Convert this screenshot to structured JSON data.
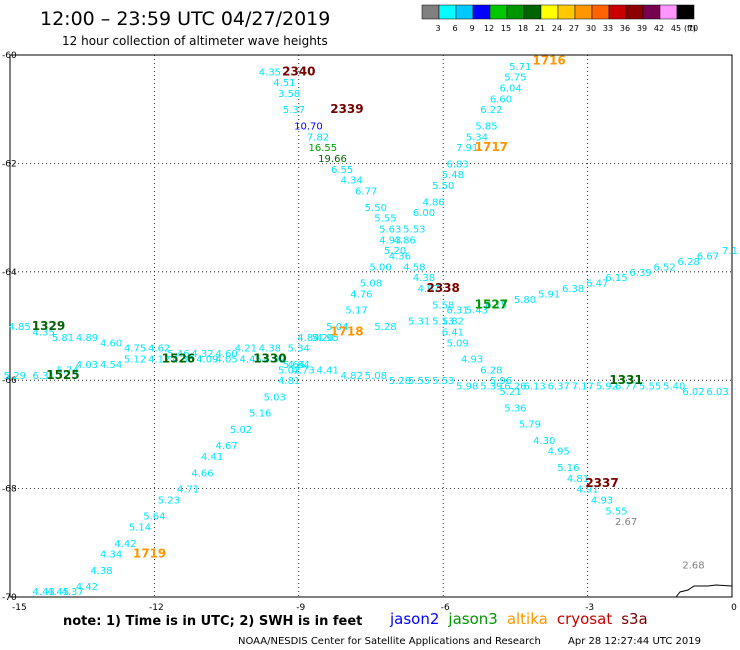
{
  "header": {
    "title": "12:00 – 23:59 UTC 04/27/2019",
    "subtitle": "12 hour collection of altimeter wave heights"
  },
  "legend_scale": {
    "labels": [
      "3",
      "6",
      "9",
      "12",
      "15",
      "18",
      "21",
      "24",
      "27",
      "30",
      "33",
      "36",
      "39",
      "42",
      "45",
      "70"
    ],
    "unit": "(ft)",
    "colors": [
      "#808080",
      "#00ffff",
      "#00c8ff",
      "#0000ff",
      "#00c800",
      "#009600",
      "#006400",
      "#ffff00",
      "#ffc800",
      "#ff9600",
      "#ff6400",
      "#c80000",
      "#8c0000",
      "#780050",
      "#ff96ff",
      "#000000"
    ]
  },
  "note": "note: 1) Time is in UTC; 2) SWH is in feet",
  "satellites": [
    {
      "name": "jason2",
      "color": "#0000ff"
    },
    {
      "name": "jason3",
      "color": "#009600"
    },
    {
      "name": "altika",
      "color": "#ff9600"
    },
    {
      "name": "cryosat",
      "color": "#c80000"
    },
    {
      "name": "s3a",
      "color": "#780000"
    }
  ],
  "credit": {
    "agency": "NOAA/NESDIS Center for Satellite Applications and Research",
    "stamp": "Apr 28 12:27:44 UTC 2019"
  },
  "chart_data": {
    "type": "scatter",
    "title": "12:00 – 23:59 UTC 04/27/2019",
    "subtitle": "12 hour collection of altimeter wave heights",
    "xlabel": "",
    "ylabel": "",
    "xlim": [
      -15,
      0
    ],
    "ylim": [
      -70,
      -60
    ],
    "xticks": [
      -15,
      -12,
      -9,
      -6,
      -3,
      0
    ],
    "yticks": [
      -60,
      -62,
      -64,
      -66,
      -68,
      -70
    ],
    "xtick_labels": [
      "-15",
      "-12",
      "-9",
      "-6",
      "-3",
      "0"
    ],
    "ytick_labels": [
      "-60",
      "-62",
      "-64",
      "-66",
      "-68",
      "-70"
    ],
    "grid": true,
    "units": "ft",
    "swh_labels": [
      {
        "x": -9.6,
        "y": -60.3,
        "text": "4.35",
        "color": "#00e6ff"
      },
      {
        "x": -9.3,
        "y": -60.5,
        "text": "4.51",
        "color": "#00e6ff"
      },
      {
        "x": -9.2,
        "y": -60.7,
        "text": "3.58",
        "color": "#00e6ff"
      },
      {
        "x": -9.1,
        "y": -61.0,
        "text": "5.37",
        "color": "#00e6ff"
      },
      {
        "x": -8.8,
        "y": -61.3,
        "text": "10.70",
        "color": "#0000ff"
      },
      {
        "x": -8.6,
        "y": -61.5,
        "text": "7.82",
        "color": "#00e6ff"
      },
      {
        "x": -8.5,
        "y": -61.7,
        "text": "16.55",
        "color": "#00a000"
      },
      {
        "x": -8.3,
        "y": -61.9,
        "text": "19.66",
        "color": "#006400"
      },
      {
        "x": -8.1,
        "y": -62.1,
        "text": "6.55",
        "color": "#00e6ff"
      },
      {
        "x": -7.9,
        "y": -62.3,
        "text": "4.34",
        "color": "#00e6ff"
      },
      {
        "x": -7.6,
        "y": -62.5,
        "text": "6.77",
        "color": "#00e6ff"
      },
      {
        "x": -7.4,
        "y": -62.8,
        "text": "5.50",
        "color": "#00e6ff"
      },
      {
        "x": -7.2,
        "y": -63.0,
        "text": "5.55",
        "color": "#00e6ff"
      },
      {
        "x": -7.1,
        "y": -63.2,
        "text": "5.63",
        "color": "#00e6ff"
      },
      {
        "x": -7.1,
        "y": -63.4,
        "text": "4.93",
        "color": "#00e6ff"
      },
      {
        "x": -6.9,
        "y": -63.7,
        "text": "4.36",
        "color": "#00e6ff"
      },
      {
        "x": -6.6,
        "y": -63.9,
        "text": "4.58",
        "color": "#00e6ff"
      },
      {
        "x": -6.4,
        "y": -64.1,
        "text": "4.38",
        "color": "#00e6ff"
      },
      {
        "x": -6.3,
        "y": -64.3,
        "text": "4.97",
        "color": "#00e6ff"
      },
      {
        "x": -6.0,
        "y": -64.6,
        "text": "5.58",
        "color": "#00e6ff"
      },
      {
        "x": -5.7,
        "y": -64.7,
        "text": "6.31",
        "color": "#00e6ff"
      },
      {
        "x": -5.8,
        "y": -64.9,
        "text": "5.82",
        "color": "#00e6ff"
      },
      {
        "x": -5.8,
        "y": -65.1,
        "text": "6.41",
        "color": "#00e6ff"
      },
      {
        "x": -5.7,
        "y": -65.3,
        "text": "5.09",
        "color": "#00e6ff"
      },
      {
        "x": -5.4,
        "y": -65.6,
        "text": "4.93",
        "color": "#00e6ff"
      },
      {
        "x": -5.0,
        "y": -65.8,
        "text": "6.28",
        "color": "#00e6ff"
      },
      {
        "x": -4.8,
        "y": -66.0,
        "text": "5.96",
        "color": "#00e6ff"
      },
      {
        "x": -4.6,
        "y": -66.2,
        "text": "5.21",
        "color": "#00e6ff"
      },
      {
        "x": -4.5,
        "y": -66.5,
        "text": "5.36",
        "color": "#00e6ff"
      },
      {
        "x": -4.2,
        "y": -66.8,
        "text": "5.79",
        "color": "#00e6ff"
      },
      {
        "x": -3.9,
        "y": -67.1,
        "text": "4.30",
        "color": "#00e6ff"
      },
      {
        "x": -3.6,
        "y": -67.3,
        "text": "4.95",
        "color": "#00e6ff"
      },
      {
        "x": -3.4,
        "y": -67.6,
        "text": "5.16",
        "color": "#00e6ff"
      },
      {
        "x": -3.2,
        "y": -67.8,
        "text": "4.81",
        "color": "#00e6ff"
      },
      {
        "x": -3.0,
        "y": -68.0,
        "text": "4.91",
        "color": "#00e6ff"
      },
      {
        "x": -2.7,
        "y": -68.2,
        "text": "4.93",
        "color": "#00e6ff"
      },
      {
        "x": -2.4,
        "y": -68.4,
        "text": "5.55",
        "color": "#00e6ff"
      },
      {
        "x": -2.2,
        "y": -68.6,
        "text": "2.67",
        "color": "#808080"
      },
      {
        "x": -0.8,
        "y": -69.4,
        "text": "2.68",
        "color": "#808080"
      },
      {
        "x": -4.4,
        "y": -60.2,
        "text": "5.71",
        "color": "#00e6ff"
      },
      {
        "x": -4.5,
        "y": -60.4,
        "text": "5.75",
        "color": "#00e6ff"
      },
      {
        "x": -4.6,
        "y": -60.6,
        "text": "6.04",
        "color": "#00e6ff"
      },
      {
        "x": -4.8,
        "y": -60.8,
        "text": "6.60",
        "color": "#00e6ff"
      },
      {
        "x": -5.0,
        "y": -61.0,
        "text": "6.22",
        "color": "#00e6ff"
      },
      {
        "x": -5.1,
        "y": -61.3,
        "text": "5.85",
        "color": "#00e6ff"
      },
      {
        "x": -5.3,
        "y": -61.5,
        "text": "5.34",
        "color": "#00e6ff"
      },
      {
        "x": -5.5,
        "y": -61.7,
        "text": "7.91",
        "color": "#00e6ff"
      },
      {
        "x": -5.7,
        "y": -62.0,
        "text": "6.83",
        "color": "#00e6ff"
      },
      {
        "x": -5.8,
        "y": -62.2,
        "text": "5.48",
        "color": "#00e6ff"
      },
      {
        "x": -6.0,
        "y": -62.4,
        "text": "5.50",
        "color": "#00e6ff"
      },
      {
        "x": -6.2,
        "y": -62.7,
        "text": "4.86",
        "color": "#00e6ff"
      },
      {
        "x": -6.4,
        "y": -62.9,
        "text": "6.00",
        "color": "#00e6ff"
      },
      {
        "x": -6.6,
        "y": -63.2,
        "text": "5.53",
        "color": "#00e6ff"
      },
      {
        "x": -6.8,
        "y": -63.4,
        "text": "4.86",
        "color": "#00e6ff"
      },
      {
        "x": -7.0,
        "y": -63.6,
        "text": "5.20",
        "color": "#00e6ff"
      },
      {
        "x": -7.3,
        "y": -63.9,
        "text": "5.00",
        "color": "#00e6ff"
      },
      {
        "x": -7.5,
        "y": -64.2,
        "text": "5.08",
        "color": "#00e6ff"
      },
      {
        "x": -7.7,
        "y": -64.4,
        "text": "4.76",
        "color": "#00e6ff"
      },
      {
        "x": -7.8,
        "y": -64.7,
        "text": "5.17",
        "color": "#00e6ff"
      },
      {
        "x": -8.2,
        "y": -65.0,
        "text": "5.04",
        "color": "#00e6ff"
      },
      {
        "x": -8.5,
        "y": -65.2,
        "text": "5.20",
        "color": "#00e6ff"
      },
      {
        "x": -9.0,
        "y": -65.4,
        "text": "5.34",
        "color": "#00e6ff"
      },
      {
        "x": -9.1,
        "y": -65.7,
        "text": "5.64",
        "color": "#00e6ff"
      },
      {
        "x": -9.2,
        "y": -65.8,
        "text": "5.02",
        "color": "#00e6ff"
      },
      {
        "x": -9.2,
        "y": -66.0,
        "text": "4.81",
        "color": "#00e6ff"
      },
      {
        "x": -9.5,
        "y": -66.3,
        "text": "5.03",
        "color": "#00e6ff"
      },
      {
        "x": -9.8,
        "y": -66.6,
        "text": "5.16",
        "color": "#00e6ff"
      },
      {
        "x": -10.2,
        "y": -66.9,
        "text": "5.02",
        "color": "#00e6ff"
      },
      {
        "x": -10.5,
        "y": -67.2,
        "text": "4.67",
        "color": "#00e6ff"
      },
      {
        "x": -10.8,
        "y": -67.4,
        "text": "4.41",
        "color": "#00e6ff"
      },
      {
        "x": -11.0,
        "y": -67.7,
        "text": "4.66",
        "color": "#00e6ff"
      },
      {
        "x": -11.3,
        "y": -68.0,
        "text": "4.71",
        "color": "#00e6ff"
      },
      {
        "x": -11.7,
        "y": -68.2,
        "text": "5.23",
        "color": "#00e6ff"
      },
      {
        "x": -12.0,
        "y": -68.5,
        "text": "5.64",
        "color": "#00e6ff"
      },
      {
        "x": -12.3,
        "y": -68.7,
        "text": "5.14",
        "color": "#00e6ff"
      },
      {
        "x": -12.6,
        "y": -69.0,
        "text": "4.42",
        "color": "#00e6ff"
      },
      {
        "x": -12.9,
        "y": -69.2,
        "text": "4.34",
        "color": "#00e6ff"
      },
      {
        "x": -13.1,
        "y": -69.5,
        "text": "4.38",
        "color": "#00e6ff"
      },
      {
        "x": -13.4,
        "y": -69.8,
        "text": "4.42",
        "color": "#00e6ff"
      },
      {
        "x": -13.7,
        "y": -70.1,
        "text": "4.37",
        "color": "#00e6ff"
      },
      {
        "x": -14.0,
        "y": -70.4,
        "text": "4.45",
        "color": "#00e6ff"
      },
      {
        "x": -14.3,
        "y": -70.7,
        "text": "4.43",
        "color": "#00e6ff"
      },
      {
        "x": -14.8,
        "y": -65.0,
        "text": "4.85",
        "color": "#00e6ff"
      },
      {
        "x": -14.3,
        "y": -65.1,
        "text": "4.35",
        "color": "#00e6ff"
      },
      {
        "x": -13.9,
        "y": -65.2,
        "text": "5.81",
        "color": "#00e6ff"
      },
      {
        "x": -13.4,
        "y": -65.2,
        "text": "4.89",
        "color": "#00e6ff"
      },
      {
        "x": -12.9,
        "y": -65.3,
        "text": "4.60",
        "color": "#00e6ff"
      },
      {
        "x": -12.4,
        "y": -65.4,
        "text": "4.75",
        "color": "#00e6ff"
      },
      {
        "x": -11.9,
        "y": -65.4,
        "text": "4.62",
        "color": "#00e6ff"
      },
      {
        "x": -11.5,
        "y": -65.5,
        "text": "5.46",
        "color": "#00e6ff"
      },
      {
        "x": -11.0,
        "y": -65.5,
        "text": "4.32",
        "color": "#00e6ff"
      },
      {
        "x": -10.5,
        "y": -65.5,
        "text": "4.60",
        "color": "#00e6ff"
      },
      {
        "x": -10.1,
        "y": -65.4,
        "text": "4.21",
        "color": "#00e6ff"
      },
      {
        "x": -9.6,
        "y": -65.4,
        "text": "4.38",
        "color": "#00e6ff"
      },
      {
        "x": -8.8,
        "y": -65.2,
        "text": "4.84",
        "color": "#00e6ff"
      },
      {
        "x": -8.4,
        "y": -65.2,
        "text": "4.95",
        "color": "#00e6ff"
      },
      {
        "x": -7.2,
        "y": -65.0,
        "text": "5.28",
        "color": "#00e6ff"
      },
      {
        "x": -6.5,
        "y": -64.9,
        "text": "5.31",
        "color": "#00e6ff"
      },
      {
        "x": -6.0,
        "y": -64.9,
        "text": "5.13",
        "color": "#00e6ff"
      },
      {
        "x": -5.3,
        "y": -64.7,
        "text": "5.43",
        "color": "#00e6ff"
      },
      {
        "x": -4.9,
        "y": -64.6,
        "text": "6.15",
        "color": "#00e6ff"
      },
      {
        "x": -4.3,
        "y": -64.5,
        "text": "5.80",
        "color": "#00e6ff"
      },
      {
        "x": -3.8,
        "y": -64.4,
        "text": "5.91",
        "color": "#00e6ff"
      },
      {
        "x": -3.3,
        "y": -64.3,
        "text": "6.38",
        "color": "#00e6ff"
      },
      {
        "x": -2.8,
        "y": -64.2,
        "text": "6.47",
        "color": "#00e6ff"
      },
      {
        "x": -2.4,
        "y": -64.1,
        "text": "6.15",
        "color": "#00e6ff"
      },
      {
        "x": -1.9,
        "y": -64.0,
        "text": "6.39",
        "color": "#00e6ff"
      },
      {
        "x": -1.4,
        "y": -63.9,
        "text": "6.52",
        "color": "#00e6ff"
      },
      {
        "x": -0.9,
        "y": -63.8,
        "text": "6.28",
        "color": "#00e6ff"
      },
      {
        "x": -0.5,
        "y": -63.7,
        "text": "6.67",
        "color": "#00e6ff"
      },
      {
        "x": 0.0,
        "y": -63.6,
        "text": "7.1",
        "color": "#00e6ff"
      },
      {
        "x": -14.9,
        "y": -65.9,
        "text": "5.29",
        "color": "#00e6ff"
      },
      {
        "x": -14.3,
        "y": -65.9,
        "text": "6.31",
        "color": "#00e6ff"
      },
      {
        "x": -13.8,
        "y": -65.8,
        "text": "5.74",
        "color": "#00e6ff"
      },
      {
        "x": -13.4,
        "y": -65.7,
        "text": "4.03",
        "color": "#00e6ff"
      },
      {
        "x": -12.9,
        "y": -65.7,
        "text": "4.54",
        "color": "#00e6ff"
      },
      {
        "x": -12.4,
        "y": -65.6,
        "text": "5.12",
        "color": "#00e6ff"
      },
      {
        "x": -11.9,
        "y": -65.6,
        "text": "4.12",
        "color": "#00e6ff"
      },
      {
        "x": -11.4,
        "y": -65.6,
        "text": "4.33",
        "color": "#00e6ff"
      },
      {
        "x": -10.9,
        "y": -65.6,
        "text": "4.09",
        "color": "#00e6ff"
      },
      {
        "x": -10.5,
        "y": -65.6,
        "text": "4.05",
        "color": "#00e6ff"
      },
      {
        "x": -10.0,
        "y": -65.6,
        "text": "4.45",
        "color": "#00e6ff"
      },
      {
        "x": -9.5,
        "y": -65.6,
        "text": "4.92",
        "color": "#00e6ff"
      },
      {
        "x": -9.0,
        "y": -65.7,
        "text": "4.64",
        "color": "#00e6ff"
      },
      {
        "x": -8.9,
        "y": -65.8,
        "text": "4.73",
        "color": "#00e6ff"
      },
      {
        "x": -8.4,
        "y": -65.8,
        "text": "4.41",
        "color": "#00e6ff"
      },
      {
        "x": -7.9,
        "y": -65.9,
        "text": "4.82",
        "color": "#00e6ff"
      },
      {
        "x": -7.4,
        "y": -65.9,
        "text": "5.08",
        "color": "#00e6ff"
      },
      {
        "x": -6.9,
        "y": -66.0,
        "text": "5.28",
        "color": "#00e6ff"
      },
      {
        "x": -6.5,
        "y": -66.0,
        "text": "5.55",
        "color": "#00e6ff"
      },
      {
        "x": -6.0,
        "y": -66.0,
        "text": "5.53",
        "color": "#00e6ff"
      },
      {
        "x": -5.5,
        "y": -66.1,
        "text": "5.98",
        "color": "#00e6ff"
      },
      {
        "x": -5.0,
        "y": -66.1,
        "text": "5.39",
        "color": "#00e6ff"
      },
      {
        "x": -4.5,
        "y": -66.1,
        "text": "6.26",
        "color": "#00e6ff"
      },
      {
        "x": -4.1,
        "y": -66.1,
        "text": "6.13",
        "color": "#00e6ff"
      },
      {
        "x": -3.6,
        "y": -66.1,
        "text": "6.37",
        "color": "#00e6ff"
      },
      {
        "x": -3.1,
        "y": -66.1,
        "text": "7.17",
        "color": "#00e6ff"
      },
      {
        "x": -2.6,
        "y": -66.1,
        "text": "5.92",
        "color": "#00e6ff"
      },
      {
        "x": -2.2,
        "y": -66.1,
        "text": "6.77",
        "color": "#00e6ff"
      },
      {
        "x": -1.7,
        "y": -66.1,
        "text": "5.55",
        "color": "#00e6ff"
      },
      {
        "x": -1.2,
        "y": -66.1,
        "text": "5.40",
        "color": "#00e6ff"
      },
      {
        "x": -0.8,
        "y": -66.2,
        "text": "6.02",
        "color": "#00e6ff"
      },
      {
        "x": -0.3,
        "y": -66.2,
        "text": "6.03",
        "color": "#00e6ff"
      }
    ],
    "hour_labels": [
      {
        "x": -9.0,
        "y": -60.3,
        "text": "2340",
        "color": "#780000"
      },
      {
        "x": -8.0,
        "y": -61.0,
        "text": "2339",
        "color": "#780000"
      },
      {
        "x": -6.0,
        "y": -64.3,
        "text": "2338",
        "color": "#780000"
      },
      {
        "x": -2.7,
        "y": -67.9,
        "text": "2337",
        "color": "#780000"
      },
      {
        "x": -3.8,
        "y": -60.1,
        "text": "1716",
        "color": "#ff9600"
      },
      {
        "x": -5.0,
        "y": -61.7,
        "text": "1717",
        "color": "#ff9600"
      },
      {
        "x": -8.0,
        "y": -65.1,
        "text": "1718",
        "color": "#ff9600"
      },
      {
        "x": -12.1,
        "y": -69.2,
        "text": "1719",
        "color": "#ff9600"
      },
      {
        "x": -5.0,
        "y": -64.6,
        "text": "1527",
        "color": "#009600"
      },
      {
        "x": -14.2,
        "y": -65.0,
        "text": "1329",
        "color": "#006400"
      },
      {
        "x": -13.9,
        "y": -65.9,
        "text": "1525",
        "color": "#006400"
      },
      {
        "x": -11.5,
        "y": -65.6,
        "text": "1526",
        "color": "#006400"
      },
      {
        "x": -9.6,
        "y": -65.6,
        "text": "1330",
        "color": "#006400"
      },
      {
        "x": -2.2,
        "y": -66.0,
        "text": "1331",
        "color": "#006400"
      }
    ]
  }
}
